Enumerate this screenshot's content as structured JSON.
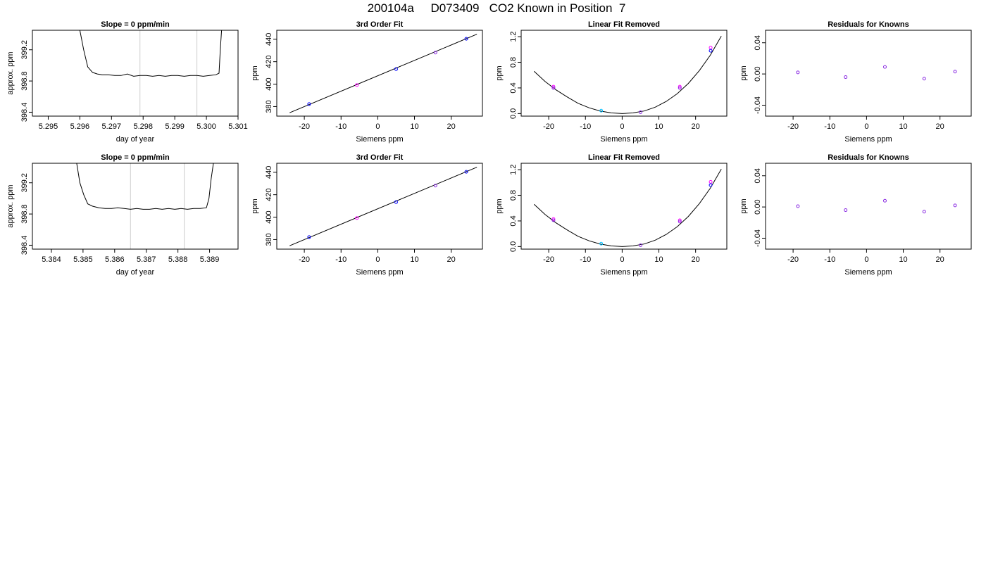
{
  "page_title": "200104a     D073409   CO2 Known in Position  7",
  "colors": {
    "axis": "#000000",
    "line": "#000000",
    "vline": "#cccccc",
    "point_blue": "#0000ff",
    "point_magenta": "#ff00ff",
    "point_purple": "#8a2be2",
    "point_cyan": "#00bfff"
  },
  "chart_data": [
    {
      "type": "line",
      "title": "Slope =  0  ppm/min",
      "xlabel": "day of year",
      "ylabel": "approx. ppm",
      "xlim": [
        5.2945,
        5.301
      ],
      "ylim": [
        398.35,
        399.45
      ],
      "xticks": [
        5.295,
        5.296,
        5.297,
        5.298,
        5.299,
        5.3,
        5.301
      ],
      "xtick_labels": [
        "5.295",
        "5.296",
        "5.297",
        "5.298",
        "5.299",
        "5.300",
        "5.301"
      ],
      "yticks": [
        398.4,
        398.8,
        399.2
      ],
      "ytick_labels": [
        "398.4",
        "398.8",
        "399.2"
      ],
      "vlines": [
        5.2979,
        5.2997
      ],
      "series": [
        {
          "x": [
            5.296,
            5.29612,
            5.29625,
            5.2964,
            5.29655,
            5.2967,
            5.2969,
            5.2971,
            5.2973,
            5.2975,
            5.2977,
            5.2979,
            5.2981,
            5.2983,
            5.2985,
            5.2987,
            5.2989,
            5.2991,
            5.2993,
            5.2995,
            5.2997,
            5.2999,
            5.3001,
            5.3003,
            5.3004,
            5.30044,
            5.30048
          ],
          "y": [
            399.45,
            399.2,
            398.98,
            398.91,
            398.89,
            398.88,
            398.88,
            398.87,
            398.87,
            398.89,
            398.86,
            398.87,
            398.87,
            398.86,
            398.87,
            398.86,
            398.87,
            398.87,
            398.86,
            398.87,
            398.87,
            398.86,
            398.87,
            398.88,
            398.9,
            399.2,
            399.45
          ]
        }
      ]
    },
    {
      "type": "scatter",
      "title": "3rd Order Fit",
      "xlabel": "Siemens ppm",
      "ylabel": "ppm",
      "xlim": [
        -27.5,
        28.5
      ],
      "ylim": [
        371.5,
        448.0
      ],
      "xticks": [
        -20,
        -10,
        0,
        10,
        20
      ],
      "xtick_labels": [
        "-20",
        "-10",
        "0",
        "10",
        "20"
      ],
      "yticks": [
        380,
        400,
        420,
        440
      ],
      "ytick_labels": [
        "380",
        "400",
        "420",
        "440"
      ],
      "fit_line": {
        "x": [
          -24,
          27
        ],
        "y": [
          374.5,
          444.5
        ]
      },
      "points": [
        {
          "x": -18.7,
          "y": 382.2,
          "color": "point_blue"
        },
        {
          "x": -5.7,
          "y": 399.2,
          "color": "point_magenta"
        },
        {
          "x": 5.0,
          "y": 413.4,
          "color": "point_blue"
        },
        {
          "x": 15.7,
          "y": 428.1,
          "color": "point_purple"
        },
        {
          "x": 24.1,
          "y": 440.4,
          "color": "point_blue"
        }
      ]
    },
    {
      "type": "scatter",
      "title": "Linear Fit Removed",
      "xlabel": "Siemens ppm",
      "ylabel": "ppm",
      "xlim": [
        -27.5,
        28.5
      ],
      "ylim": [
        -0.04,
        1.3
      ],
      "xticks": [
        -20,
        -10,
        0,
        10,
        20
      ],
      "xtick_labels": [
        "-20",
        "-10",
        "0",
        "10",
        "20"
      ],
      "yticks": [
        0.0,
        0.4,
        0.8,
        1.2
      ],
      "ytick_labels": [
        "0.0",
        "0.4",
        "0.8",
        "1.2"
      ],
      "curve": {
        "x": [
          -24,
          -21,
          -18,
          -15,
          -12,
          -9,
          -6,
          -3,
          0,
          3,
          6,
          9,
          12,
          15,
          18,
          21,
          24,
          27
        ],
        "y": [
          0.66,
          0.5,
          0.37,
          0.26,
          0.16,
          0.09,
          0.04,
          0.01,
          0.0,
          0.01,
          0.04,
          0.1,
          0.19,
          0.31,
          0.47,
          0.67,
          0.91,
          1.21
        ]
      },
      "points": [
        {
          "x": -18.7,
          "y": 0.42,
          "color": "point_magenta"
        },
        {
          "x": -18.7,
          "y": 0.4,
          "color": "point_purple"
        },
        {
          "x": -5.7,
          "y": 0.045,
          "color": "point_cyan"
        },
        {
          "x": 5.0,
          "y": 0.02,
          "color": "point_purple"
        },
        {
          "x": 15.7,
          "y": 0.42,
          "color": "point_magenta"
        },
        {
          "x": 15.7,
          "y": 0.4,
          "color": "point_purple"
        },
        {
          "x": 24.1,
          "y": 1.03,
          "color": "point_magenta"
        },
        {
          "x": 24.1,
          "y": 0.98,
          "color": "point_blue"
        }
      ]
    },
    {
      "type": "scatter",
      "title": "Residuals for Knowns",
      "xlabel": "Siemens ppm",
      "ylabel": "ppm",
      "xlim": [
        -27.5,
        28.5
      ],
      "ylim": [
        -0.054,
        0.056
      ],
      "xticks": [
        -20,
        -10,
        0,
        10,
        20
      ],
      "xtick_labels": [
        "-20",
        "-10",
        "0",
        "10",
        "20"
      ],
      "yticks": [
        -0.04,
        0.0,
        0.04
      ],
      "ytick_labels": [
        "-0.04",
        "0.00",
        "0.04"
      ],
      "points": [
        {
          "x": -18.7,
          "y": 0.002,
          "color": "point_purple"
        },
        {
          "x": -5.7,
          "y": -0.004,
          "color": "point_purple"
        },
        {
          "x": 5.0,
          "y": 0.009,
          "color": "point_purple"
        },
        {
          "x": 15.7,
          "y": -0.006,
          "color": "point_purple"
        },
        {
          "x": 24.1,
          "y": 0.003,
          "color": "point_purple"
        }
      ]
    },
    {
      "type": "line",
      "title": "Slope =  0  ppm/min",
      "xlabel": "day of year",
      "ylabel": "approx. ppm",
      "xlim": [
        5.3834,
        5.3899
      ],
      "ylim": [
        398.35,
        399.45
      ],
      "xticks": [
        5.384,
        5.385,
        5.386,
        5.387,
        5.388,
        5.389
      ],
      "xtick_labels": [
        "5.384",
        "5.385",
        "5.386",
        "5.387",
        "5.388",
        "5.389"
      ],
      "yticks": [
        398.4,
        398.8,
        399.2
      ],
      "ytick_labels": [
        "398.4",
        "398.8",
        "399.2"
      ],
      "vlines": [
        5.3865,
        5.3882
      ],
      "series": [
        {
          "x": [
            5.3848,
            5.3849,
            5.38502,
            5.38515,
            5.3853,
            5.3855,
            5.3857,
            5.3859,
            5.3861,
            5.3863,
            5.3865,
            5.3867,
            5.3869,
            5.3871,
            5.3873,
            5.3875,
            5.3877,
            5.3879,
            5.3881,
            5.3883,
            5.3885,
            5.3887,
            5.3889,
            5.38898,
            5.38905,
            5.38912
          ],
          "y": [
            399.45,
            399.2,
            399.05,
            398.93,
            398.9,
            398.88,
            398.87,
            398.87,
            398.88,
            398.87,
            398.86,
            398.87,
            398.86,
            398.86,
            398.87,
            398.86,
            398.87,
            398.86,
            398.87,
            398.86,
            398.87,
            398.87,
            398.88,
            399.0,
            399.25,
            399.45
          ]
        }
      ]
    },
    {
      "type": "scatter",
      "title": "3rd Order Fit",
      "xlabel": "Siemens ppm",
      "ylabel": "ppm",
      "xlim": [
        -27.5,
        28.5
      ],
      "ylim": [
        371.5,
        448.0
      ],
      "xticks": [
        -20,
        -10,
        0,
        10,
        20
      ],
      "xtick_labels": [
        "-20",
        "-10",
        "0",
        "10",
        "20"
      ],
      "yticks": [
        380,
        400,
        420,
        440
      ],
      "ytick_labels": [
        "380",
        "400",
        "420",
        "440"
      ],
      "fit_line": {
        "x": [
          -24,
          27
        ],
        "y": [
          374.5,
          444.5
        ]
      },
      "points": [
        {
          "x": -18.7,
          "y": 382.2,
          "color": "point_blue"
        },
        {
          "x": -5.7,
          "y": 399.2,
          "color": "point_magenta"
        },
        {
          "x": 5.0,
          "y": 413.4,
          "color": "point_blue"
        },
        {
          "x": 15.7,
          "y": 428.1,
          "color": "point_purple"
        },
        {
          "x": 24.1,
          "y": 440.4,
          "color": "point_blue"
        }
      ]
    },
    {
      "type": "scatter",
      "title": "Linear Fit Removed",
      "xlabel": "Siemens ppm",
      "ylabel": "ppm",
      "xlim": [
        -27.5,
        28.5
      ],
      "ylim": [
        -0.04,
        1.3
      ],
      "xticks": [
        -20,
        -10,
        0,
        10,
        20
      ],
      "xtick_labels": [
        "-20",
        "-10",
        "0",
        "10",
        "20"
      ],
      "yticks": [
        0.0,
        0.4,
        0.8,
        1.2
      ],
      "ytick_labels": [
        "0.0",
        "0.4",
        "0.8",
        "1.2"
      ],
      "curve": {
        "x": [
          -24,
          -21,
          -18,
          -15,
          -12,
          -9,
          -6,
          -3,
          0,
          3,
          6,
          9,
          12,
          15,
          18,
          21,
          24,
          27
        ],
        "y": [
          0.66,
          0.5,
          0.37,
          0.26,
          0.16,
          0.09,
          0.04,
          0.01,
          0.0,
          0.01,
          0.04,
          0.1,
          0.19,
          0.31,
          0.47,
          0.67,
          0.91,
          1.21
        ]
      },
      "points": [
        {
          "x": -18.7,
          "y": 0.43,
          "color": "point_magenta"
        },
        {
          "x": -18.7,
          "y": 0.41,
          "color": "point_purple"
        },
        {
          "x": -5.7,
          "y": 0.045,
          "color": "point_cyan"
        },
        {
          "x": 5.0,
          "y": 0.02,
          "color": "point_purple"
        },
        {
          "x": 15.7,
          "y": 0.41,
          "color": "point_magenta"
        },
        {
          "x": 15.7,
          "y": 0.39,
          "color": "point_purple"
        },
        {
          "x": 24.1,
          "y": 1.01,
          "color": "point_magenta"
        },
        {
          "x": 24.1,
          "y": 0.96,
          "color": "point_blue"
        }
      ]
    },
    {
      "type": "scatter",
      "title": "Residuals for Knowns",
      "xlabel": "Siemens ppm",
      "ylabel": "ppm",
      "xlim": [
        -27.5,
        28.5
      ],
      "ylim": [
        -0.054,
        0.056
      ],
      "xticks": [
        -20,
        -10,
        0,
        10,
        20
      ],
      "xtick_labels": [
        "-20",
        "-10",
        "0",
        "10",
        "20"
      ],
      "yticks": [
        -0.04,
        0.0,
        0.04
      ],
      "ytick_labels": [
        "-0.04",
        "0.00",
        "0.04"
      ],
      "points": [
        {
          "x": -18.7,
          "y": 0.001,
          "color": "point_purple"
        },
        {
          "x": -5.7,
          "y": -0.004,
          "color": "point_purple"
        },
        {
          "x": 5.0,
          "y": 0.008,
          "color": "point_purple"
        },
        {
          "x": 15.7,
          "y": -0.006,
          "color": "point_purple"
        },
        {
          "x": 24.1,
          "y": 0.002,
          "color": "point_purple"
        }
      ]
    }
  ]
}
